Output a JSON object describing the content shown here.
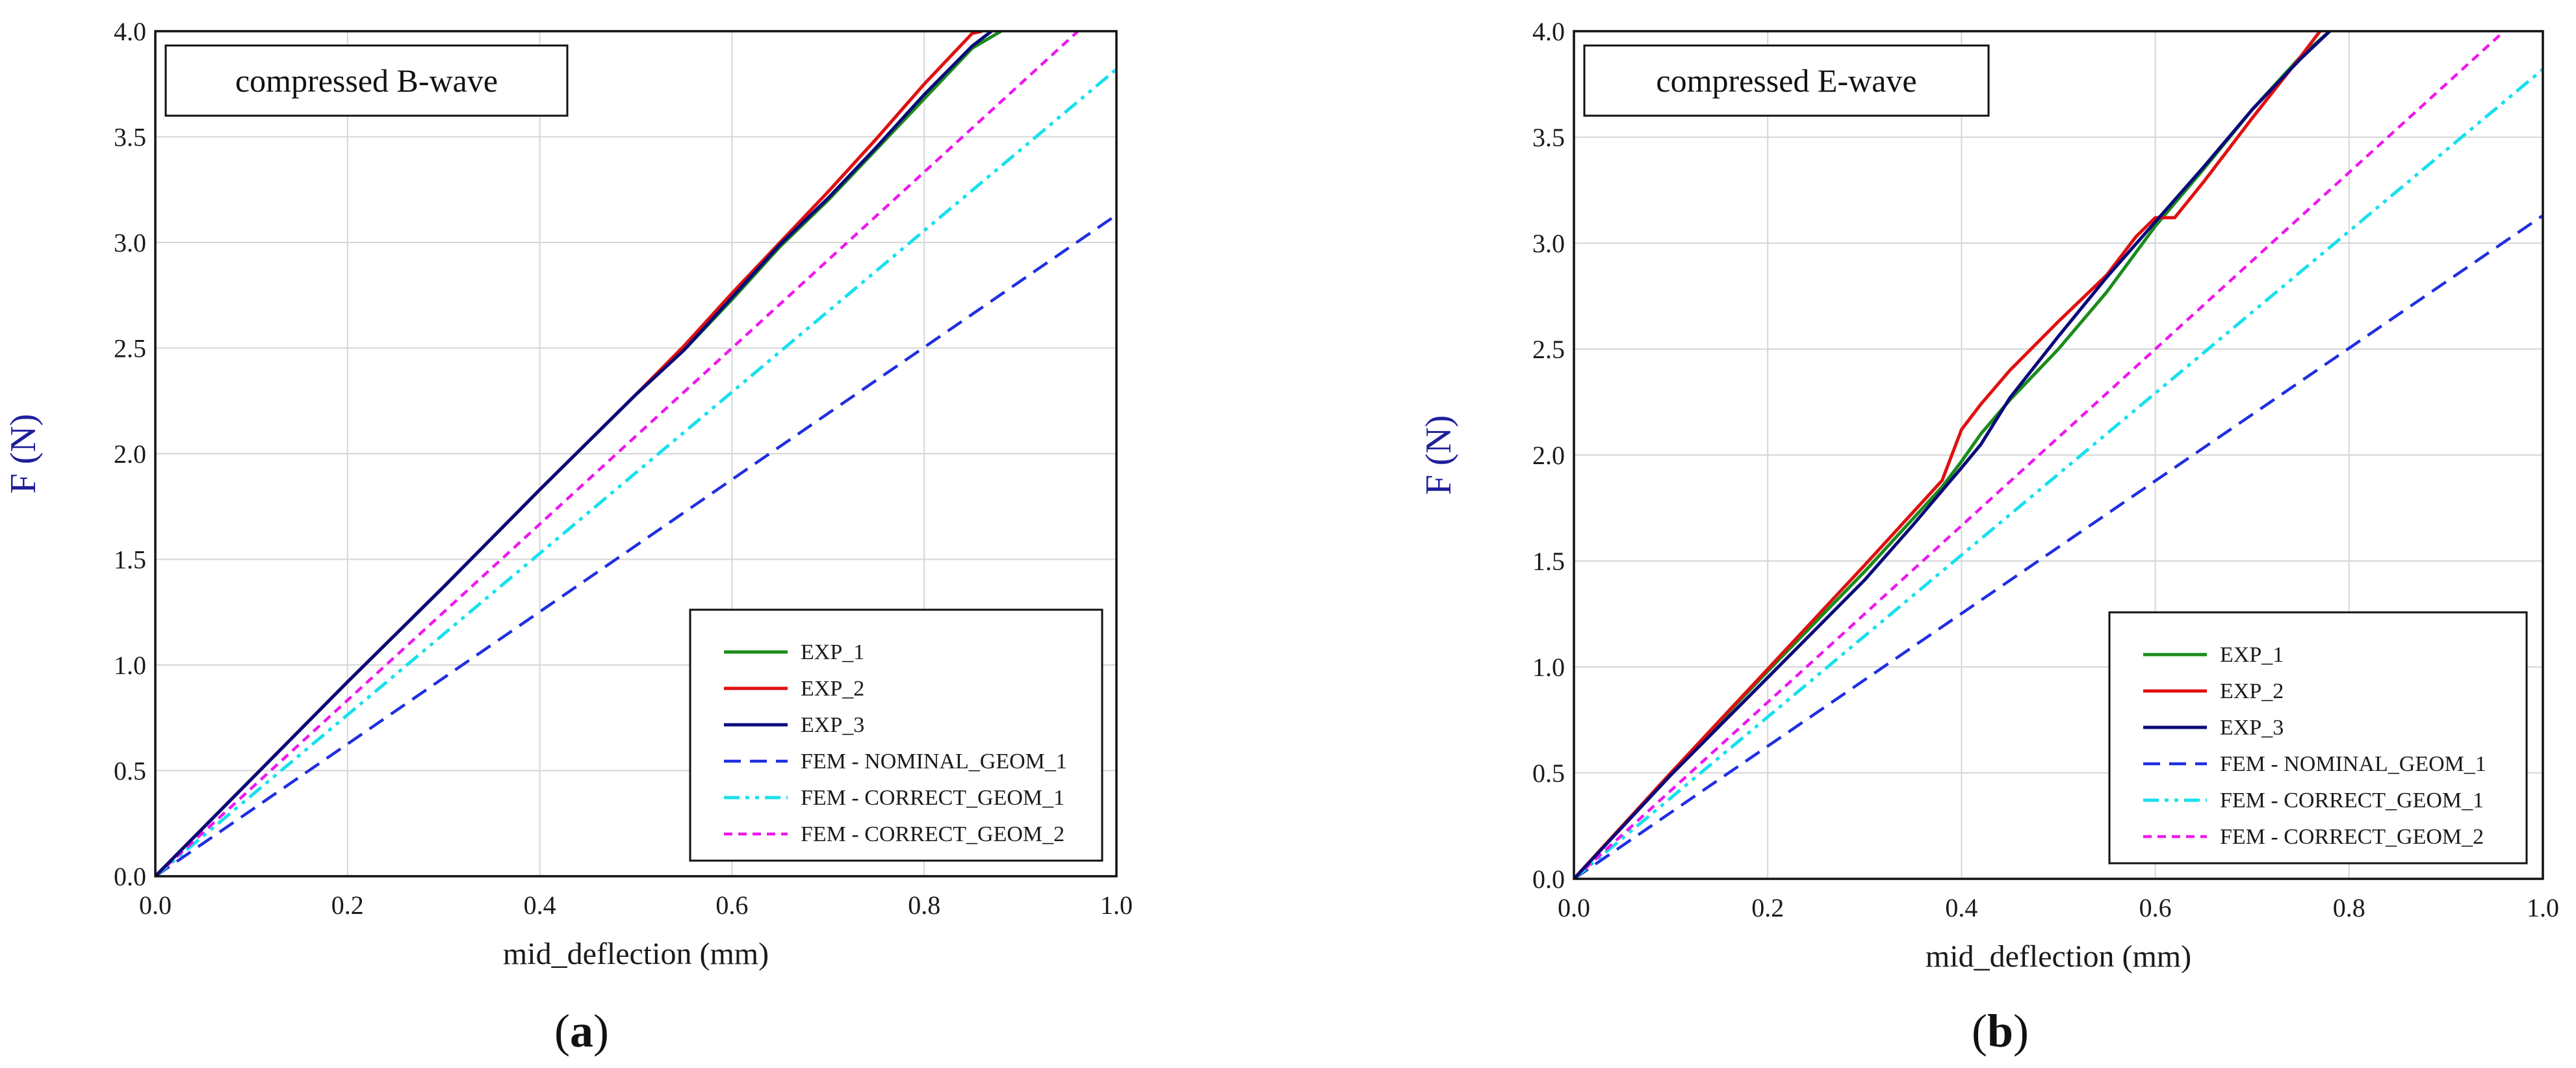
{
  "colors": {
    "EXP_1": "#1a8c1a",
    "EXP_2": "#e01010",
    "EXP_3": "#0a0a7a",
    "NOMINAL": "#1f2fe0",
    "CORRECT_1": "#18e0ee",
    "CORRECT_2": "#ee18ee",
    "grid": "#d6d6d6",
    "ylabel": "#1f1f9a"
  },
  "chart_data": [
    {
      "type": "line",
      "panel": "a",
      "caption": "(a)",
      "caption_parts": [
        "(",
        "a",
        ")"
      ],
      "title": "compressed B-wave",
      "xlabel": "mid_deflection (mm)",
      "ylabel": "F (N)",
      "xlim": [
        0,
        1.0
      ],
      "ylim": [
        0,
        4.0
      ],
      "x_ticks": [
        "0.0",
        "0.2",
        "0.4",
        "0.6",
        "0.8",
        "1.0"
      ],
      "y_ticks": [
        "0.0",
        "0.5",
        "1.0",
        "1.5",
        "2.0",
        "2.5",
        "3.0",
        "3.5",
        "4.0"
      ],
      "grid": true,
      "legend_position": "bottom-right",
      "series": [
        {
          "name": "EXP_1",
          "style": "solid",
          "x": [
            0,
            0.1,
            0.2,
            0.3,
            0.4,
            0.5,
            0.55,
            0.6,
            0.65,
            0.7,
            0.75,
            0.8,
            0.85,
            0.88
          ],
          "y": [
            0,
            0.46,
            0.92,
            1.37,
            1.83,
            2.28,
            2.49,
            2.73,
            2.98,
            3.2,
            3.44,
            3.68,
            3.92,
            4.0
          ]
        },
        {
          "name": "EXP_2",
          "style": "solid",
          "x": [
            0,
            0.1,
            0.2,
            0.3,
            0.4,
            0.5,
            0.55,
            0.6,
            0.65,
            0.7,
            0.75,
            0.8,
            0.85,
            0.86
          ],
          "y": [
            0,
            0.46,
            0.92,
            1.37,
            1.83,
            2.28,
            2.51,
            2.76,
            3.0,
            3.24,
            3.49,
            3.75,
            3.99,
            4.0
          ]
        },
        {
          "name": "EXP_3",
          "style": "solid",
          "x": [
            0,
            0.1,
            0.2,
            0.3,
            0.4,
            0.5,
            0.55,
            0.6,
            0.65,
            0.7,
            0.75,
            0.8,
            0.85,
            0.87
          ],
          "y": [
            0,
            0.46,
            0.92,
            1.37,
            1.83,
            2.28,
            2.49,
            2.74,
            2.99,
            3.21,
            3.45,
            3.7,
            3.93,
            4.0
          ]
        },
        {
          "name": "FEM - NOMINAL_GEOM_1",
          "style": "dashed",
          "x": [
            0,
            1.0
          ],
          "y": [
            0,
            3.13
          ]
        },
        {
          "name": "FEM - CORRECT_GEOM_1",
          "style": "dashdotdot",
          "x": [
            0,
            1.0
          ],
          "y": [
            0,
            3.82
          ]
        },
        {
          "name": "FEM - CORRECT_GEOM_2",
          "style": "shortdash",
          "x": [
            0,
            0.96
          ],
          "y": [
            0,
            4.0
          ]
        }
      ]
    },
    {
      "type": "line",
      "panel": "b",
      "caption": "(b)",
      "caption_parts": [
        "(",
        "b",
        ")"
      ],
      "title": "compressed E-wave",
      "xlabel": "mid_deflection (mm)",
      "ylabel": "F (N)",
      "xlim": [
        0,
        1.0
      ],
      "ylim": [
        0,
        4.0
      ],
      "x_ticks": [
        "0.0",
        "0.2",
        "0.4",
        "0.6",
        "0.8",
        "1.0"
      ],
      "y_ticks": [
        "0.0",
        "0.5",
        "1.0",
        "1.5",
        "2.0",
        "2.5",
        "3.0",
        "3.5",
        "4.0"
      ],
      "grid": true,
      "legend_position": "bottom-right",
      "series": [
        {
          "name": "EXP_1",
          "style": "solid",
          "x": [
            0,
            0.1,
            0.2,
            0.3,
            0.38,
            0.4,
            0.42,
            0.45,
            0.5,
            0.55,
            0.6,
            0.65,
            0.7,
            0.75,
            0.78
          ],
          "y": [
            0,
            0.5,
            0.98,
            1.45,
            1.85,
            1.97,
            2.1,
            2.26,
            2.5,
            2.77,
            3.08,
            3.35,
            3.63,
            3.88,
            4.0
          ]
        },
        {
          "name": "EXP_2",
          "style": "solid",
          "x": [
            0,
            0.1,
            0.2,
            0.3,
            0.38,
            0.4,
            0.42,
            0.45,
            0.5,
            0.55,
            0.58,
            0.6,
            0.62,
            0.65,
            0.7,
            0.75,
            0.77
          ],
          "y": [
            0,
            0.5,
            0.99,
            1.48,
            1.88,
            2.12,
            2.24,
            2.4,
            2.63,
            2.85,
            3.03,
            3.12,
            3.12,
            3.29,
            3.59,
            3.88,
            4.0
          ]
        },
        {
          "name": "EXP_3",
          "style": "solid",
          "x": [
            0,
            0.1,
            0.2,
            0.3,
            0.35,
            0.4,
            0.42,
            0.45,
            0.5,
            0.55,
            0.6,
            0.65,
            0.7,
            0.75,
            0.78
          ],
          "y": [
            0,
            0.49,
            0.95,
            1.41,
            1.67,
            1.94,
            2.05,
            2.27,
            2.56,
            2.84,
            3.1,
            3.36,
            3.63,
            3.87,
            4.0
          ]
        },
        {
          "name": "FEM - NOMINAL_GEOM_1",
          "style": "dashed",
          "x": [
            0,
            1.0
          ],
          "y": [
            0,
            3.13
          ]
        },
        {
          "name": "FEM - CORRECT_GEOM_1",
          "style": "dashdotdot",
          "x": [
            0,
            1.0
          ],
          "y": [
            0,
            3.82
          ]
        },
        {
          "name": "FEM - CORRECT_GEOM_2",
          "style": "shortdash",
          "x": [
            0,
            0.96
          ],
          "y": [
            0,
            4.0
          ]
        }
      ]
    }
  ]
}
